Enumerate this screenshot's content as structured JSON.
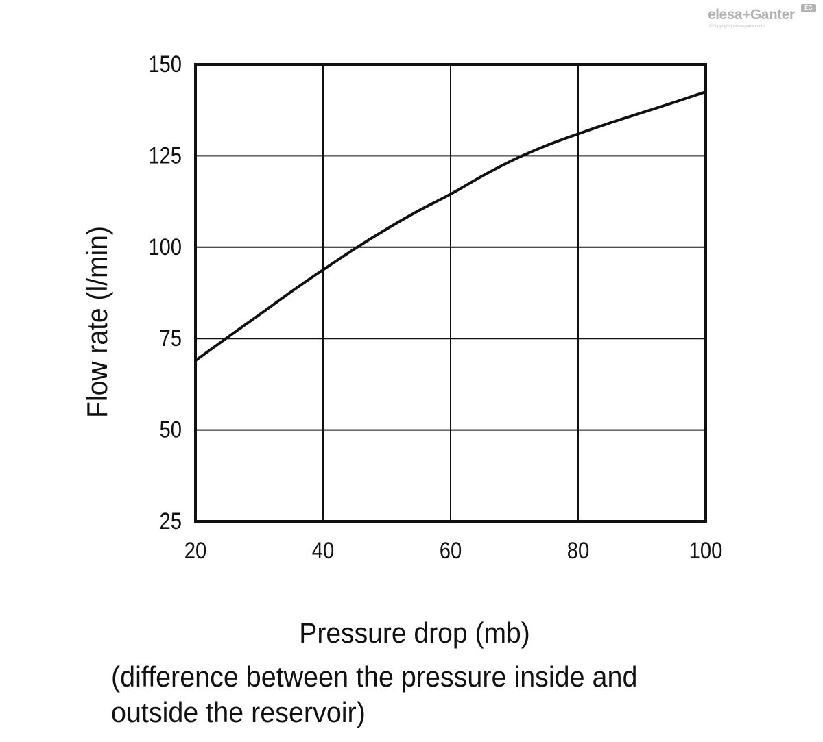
{
  "brand": {
    "name": "elesa+Ganter",
    "mark": "EG",
    "copyright": "©Copyright | elesa-ganter.com"
  },
  "chart_data": {
    "type": "line",
    "title": "",
    "xlabel": "Pressure drop (mb)",
    "xlabel_note": [
      "(difference between the pressure inside and",
      "outside the reservoir)"
    ],
    "ylabel": "Flow rate (l/min)",
    "xlim": [
      20,
      100
    ],
    "ylim": [
      25,
      150
    ],
    "xticks": [
      20,
      40,
      60,
      80,
      100
    ],
    "yticks": [
      25,
      50,
      75,
      100,
      125,
      150
    ],
    "grid": true,
    "series": [
      {
        "name": "Flow rate",
        "color": "#111111",
        "x": [
          20,
          25,
          30,
          35,
          40,
          45,
          50,
          55,
          60,
          65,
          70,
          75,
          80,
          85,
          90,
          95,
          100
        ],
        "y": [
          69,
          75.3,
          81.5,
          87.8,
          93.8,
          99.6,
          105,
          110,
          114.5,
          119.5,
          124,
          127.8,
          131,
          134,
          136.8,
          139.6,
          142.5
        ]
      }
    ]
  }
}
